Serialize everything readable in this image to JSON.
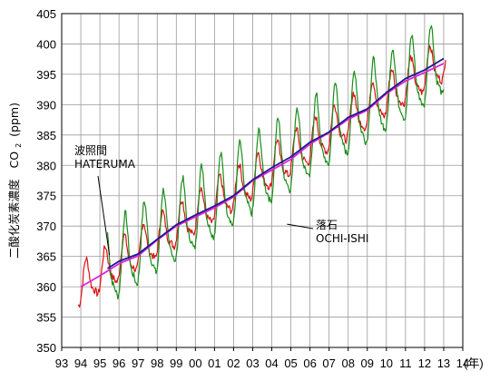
{
  "chart_data": {
    "type": "line",
    "title": "",
    "ylabel_text": "二酸化炭素濃度",
    "ylabel_co": "CO",
    "ylabel_sub": "2",
    "ylabel_unit": "(ppm)",
    "x_unit_label": "(年)",
    "x_tick_labels": [
      "93",
      "94",
      "95",
      "96",
      "97",
      "98",
      "99",
      "00",
      "01",
      "02",
      "03",
      "04",
      "05",
      "06",
      "07",
      "08",
      "09",
      "10",
      "11",
      "12",
      "13",
      "14"
    ],
    "y_tick_values": [
      350,
      355,
      360,
      365,
      370,
      375,
      380,
      385,
      390,
      395,
      400,
      405
    ],
    "xlim": [
      1993,
      2014
    ],
    "ylim": [
      350,
      405
    ],
    "grid": true,
    "annotations": [
      {
        "line1": "波照間",
        "line2": "HATERUMA",
        "target_x": 1995.5,
        "target_y": 365.2
      },
      {
        "line1": "落石",
        "line2": "OCHI-ISHI",
        "target_x": 2004.8,
        "target_y": 370.3
      }
    ],
    "series": [
      {
        "name": "波照間 HATERUMA",
        "color": "#dd1111",
        "style": "monthly",
        "x_start": 1993.85,
        "x_end": 2013.1,
        "trend_at_1994": 360.0,
        "growth_ppm_per_year": 1.95,
        "seasonal_amplitude": 3.8,
        "seasonal_phase_peak": 0.3
      },
      {
        "name": "落石 OCHI-ISHI",
        "color": "#1a8c1a",
        "style": "monthly",
        "x_start": 1995.4,
        "x_end": 2013.05,
        "trend_at_1994": 360.0,
        "growth_ppm_per_year": 1.95,
        "seasonal_amplitude": 7.0,
        "seasonal_phase_peak": 0.35
      },
      {
        "name": "HATERUMA trend",
        "color": "#dd22dd",
        "style": "trend",
        "x": [
          1994.0,
          1995.0,
          1996.0,
          1997.0,
          1998.0,
          1999.0,
          2000.0,
          2001.0,
          2002.0,
          2003.0,
          2004.0,
          2005.0,
          2006.0,
          2007.0,
          2008.0,
          2009.0,
          2010.0,
          2011.0,
          2012.0,
          2013.0
        ],
        "y": [
          360.0,
          361.8,
          363.8,
          365.1,
          367.7,
          370.0,
          371.5,
          373.0,
          374.8,
          377.5,
          379.2,
          381.0,
          383.5,
          385.4,
          387.6,
          389.1,
          391.8,
          393.9,
          395.3,
          396.8
        ]
      },
      {
        "name": "OCHI-ISHI trend",
        "color": "#1a1a8c",
        "style": "trend",
        "x": [
          1995.4,
          1996.0,
          1997.0,
          1998.0,
          1999.0,
          2000.0,
          2001.0,
          2002.0,
          2003.0,
          2004.0,
          2005.0,
          2006.0,
          2007.0,
          2008.0,
          2009.0,
          2010.0,
          2011.0,
          2012.0,
          2013.0
        ],
        "y": [
          363.0,
          364.2,
          365.4,
          367.8,
          370.2,
          371.8,
          373.3,
          375.0,
          377.6,
          379.6,
          381.4,
          383.8,
          385.5,
          387.9,
          389.3,
          392.0,
          394.3,
          395.7,
          397.6
        ]
      }
    ]
  }
}
